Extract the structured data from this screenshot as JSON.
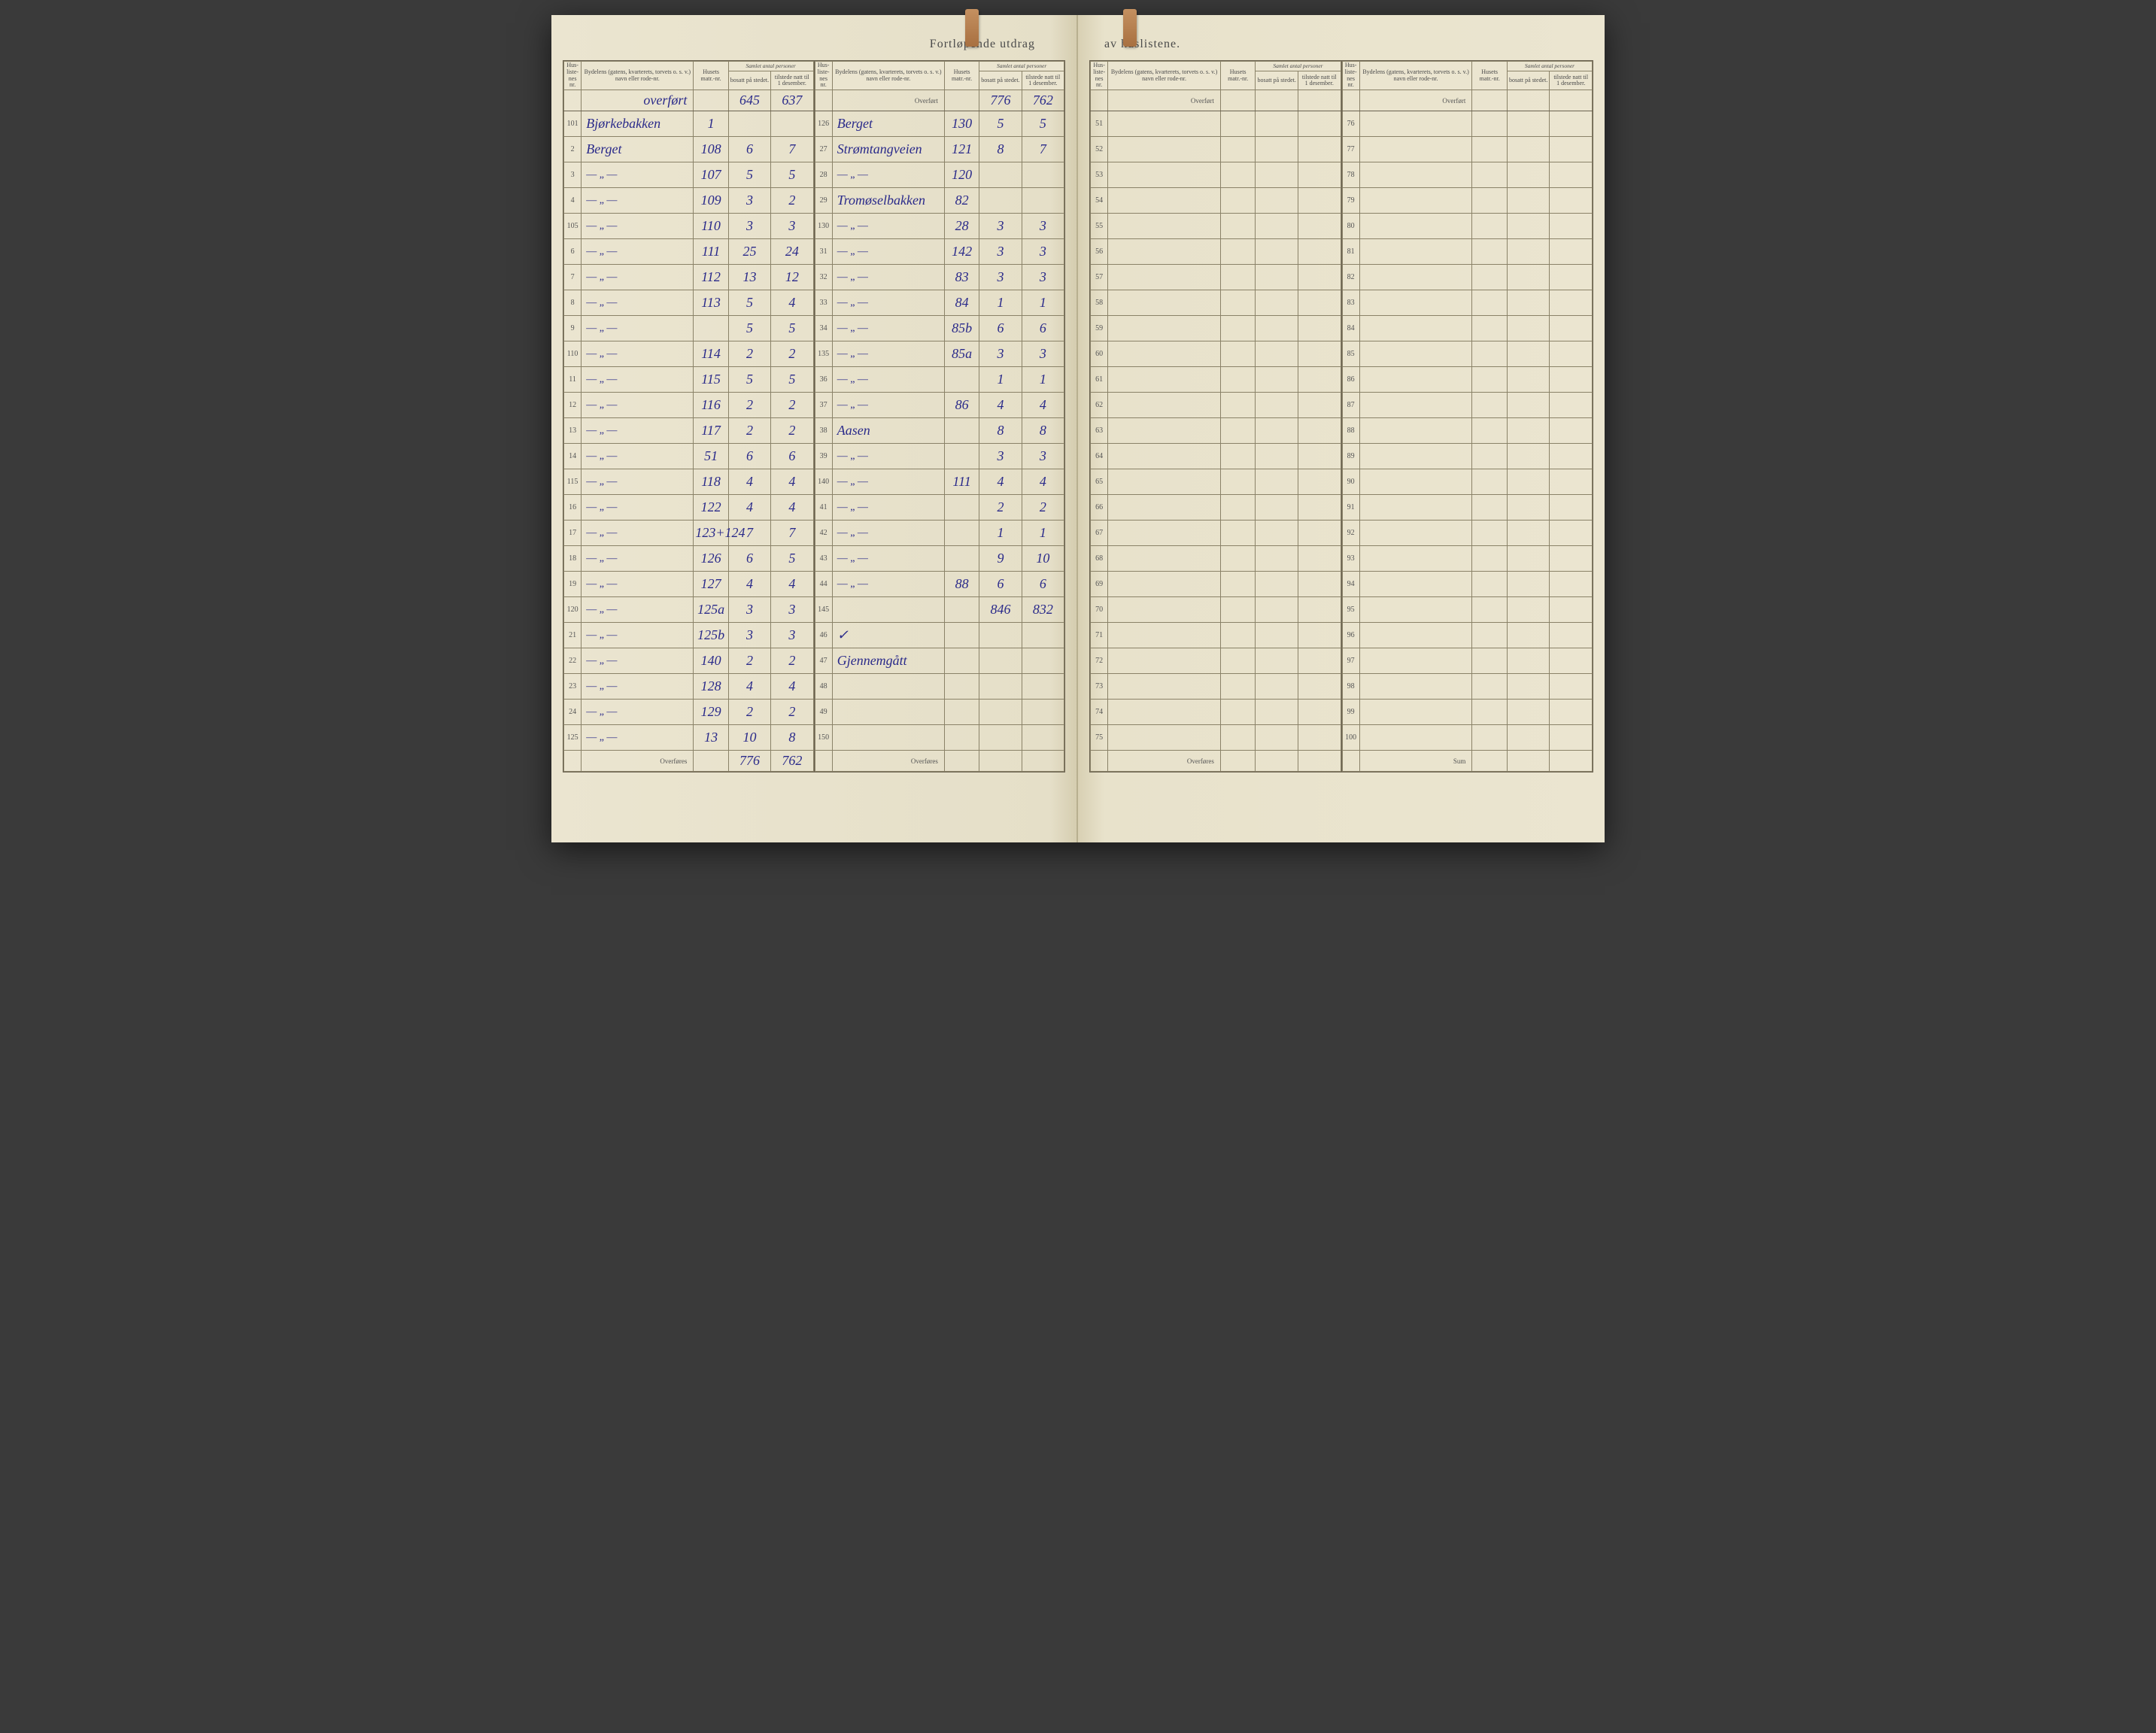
{
  "title_left": "Fortløpende utdrag",
  "title_right": "av huslistene.",
  "headers": {
    "nr": "Hus-liste-nes nr.",
    "bydel": "Bydelens (gatens, kvarterets, torvets o. s. v.) navn eller rode-nr.",
    "matr": "Husets matr.-nr.",
    "samlet": "Samlet antal personer",
    "bosatt": "bosatt på stedet.",
    "tilstede": "tilstede natt til 1 desember."
  },
  "overfort_label": "Overført",
  "overfores_label": "Overføres",
  "sum_label": "Sum",
  "left_col1": {
    "carryover": {
      "bydel": "overført",
      "bosatt": "645",
      "tilstede": "637"
    },
    "rows": [
      {
        "nr": "101",
        "bydel": "Bjørkebakken",
        "matr": "1",
        "bosatt": "",
        "tilstede": ""
      },
      {
        "nr": "2",
        "bydel": "Berget",
        "matr": "108",
        "bosatt": "6",
        "tilstede": "7"
      },
      {
        "nr": "3",
        "bydel": "—\"—",
        "matr": "107",
        "bosatt": "5",
        "tilstede": "5"
      },
      {
        "nr": "4",
        "bydel": "—\"—",
        "matr": "109",
        "bosatt": "3",
        "tilstede": "2"
      },
      {
        "nr": "105",
        "bydel": "—\"—",
        "matr": "110",
        "bosatt": "3",
        "tilstede": "3"
      },
      {
        "nr": "6",
        "bydel": "—\"—",
        "matr": "111",
        "bosatt": "25",
        "tilstede": "24"
      },
      {
        "nr": "7",
        "bydel": "—\"—",
        "matr": "112",
        "bosatt": "13",
        "tilstede": "12"
      },
      {
        "nr": "8",
        "bydel": "—\"—",
        "matr": "113",
        "bosatt": "5",
        "tilstede": "4"
      },
      {
        "nr": "9",
        "bydel": "—\"—",
        "matr": "",
        "bosatt": "5",
        "tilstede": "5"
      },
      {
        "nr": "110",
        "bydel": "—\"—",
        "matr": "114",
        "bosatt": "2",
        "tilstede": "2"
      },
      {
        "nr": "11",
        "bydel": "—\"—",
        "matr": "115",
        "bosatt": "5",
        "tilstede": "5"
      },
      {
        "nr": "12",
        "bydel": "—\"—",
        "matr": "116",
        "bosatt": "2",
        "tilstede": "2"
      },
      {
        "nr": "13",
        "bydel": "—\"—",
        "matr": "117",
        "bosatt": "2",
        "tilstede": "2"
      },
      {
        "nr": "14",
        "bydel": "—\"—",
        "matr": "51",
        "bosatt": "6",
        "tilstede": "6"
      },
      {
        "nr": "115",
        "bydel": "—\"—",
        "matr": "118",
        "bosatt": "4",
        "tilstede": "4"
      },
      {
        "nr": "16",
        "bydel": "—\"—",
        "matr": "122",
        "bosatt": "4",
        "tilstede": "4"
      },
      {
        "nr": "17",
        "bydel": "—\"—",
        "matr": "123+124",
        "bosatt": "7",
        "tilstede": "7"
      },
      {
        "nr": "18",
        "bydel": "—\"—",
        "matr": "126",
        "bosatt": "6",
        "tilstede": "5"
      },
      {
        "nr": "19",
        "bydel": "—\"—",
        "matr": "127",
        "bosatt": "4",
        "tilstede": "4"
      },
      {
        "nr": "120",
        "bydel": "—\"—",
        "matr": "125a",
        "bosatt": "3",
        "tilstede": "3"
      },
      {
        "nr": "21",
        "bydel": "—\"—",
        "matr": "125b",
        "bosatt": "3",
        "tilstede": "3"
      },
      {
        "nr": "22",
        "bydel": "—\"—",
        "matr": "140",
        "bosatt": "2",
        "tilstede": "2"
      },
      {
        "nr": "23",
        "bydel": "—\"—",
        "matr": "128",
        "bosatt": "4",
        "tilstede": "4"
      },
      {
        "nr": "24",
        "bydel": "—\"—",
        "matr": "129",
        "bosatt": "2",
        "tilstede": "2"
      },
      {
        "nr": "125",
        "bydel": "—\"—",
        "matr": "13",
        "bosatt": "10",
        "tilstede": "8"
      }
    ],
    "footer": {
      "bosatt": "776",
      "tilstede": "762"
    }
  },
  "left_col2": {
    "carryover": {
      "bydel": "Overført",
      "bosatt": "776",
      "tilstede": "762"
    },
    "rows": [
      {
        "nr": "126",
        "bydel": "Berget",
        "matr": "130",
        "bosatt": "5",
        "tilstede": "5"
      },
      {
        "nr": "27",
        "bydel": "Strømtangveien",
        "matr": "121",
        "bosatt": "8",
        "tilstede": "7"
      },
      {
        "nr": "28",
        "bydel": "—\"—",
        "matr": "120",
        "bosatt": "",
        "tilstede": ""
      },
      {
        "nr": "29",
        "bydel": "Tromøselbakken",
        "matr": "82",
        "bosatt": "",
        "tilstede": ""
      },
      {
        "nr": "130",
        "bydel": "—\"—",
        "matr": "28",
        "bosatt": "3",
        "tilstede": "3"
      },
      {
        "nr": "31",
        "bydel": "—\"—",
        "matr": "142",
        "bosatt": "3",
        "tilstede": "3"
      },
      {
        "nr": "32",
        "bydel": "—\"—",
        "matr": "83",
        "bosatt": "3",
        "tilstede": "3"
      },
      {
        "nr": "33",
        "bydel": "—\"—",
        "matr": "84",
        "bosatt": "1",
        "tilstede": "1"
      },
      {
        "nr": "34",
        "bydel": "—\"—",
        "matr": "85b",
        "bosatt": "6",
        "tilstede": "6"
      },
      {
        "nr": "135",
        "bydel": "—\"—",
        "matr": "85a",
        "bosatt": "3",
        "tilstede": "3"
      },
      {
        "nr": "36",
        "bydel": "—\"—",
        "matr": "",
        "bosatt": "1",
        "tilstede": "1"
      },
      {
        "nr": "37",
        "bydel": "—\"—",
        "matr": "86",
        "bosatt": "4",
        "tilstede": "4"
      },
      {
        "nr": "38",
        "bydel": "Aasen",
        "matr": "",
        "bosatt": "8",
        "tilstede": "8"
      },
      {
        "nr": "39",
        "bydel": "—\"—",
        "matr": "",
        "bosatt": "3",
        "tilstede": "3"
      },
      {
        "nr": "140",
        "bydel": "—\"—",
        "matr": "111",
        "bosatt": "4",
        "tilstede": "4"
      },
      {
        "nr": "41",
        "bydel": "—\"—",
        "matr": "",
        "bosatt": "2",
        "tilstede": "2"
      },
      {
        "nr": "42",
        "bydel": "—\"—",
        "matr": "",
        "bosatt": "1",
        "tilstede": "1"
      },
      {
        "nr": "43",
        "bydel": "—\"—",
        "matr": "",
        "bosatt": "9",
        "tilstede": "10"
      },
      {
        "nr": "44",
        "bydel": "—\"—",
        "matr": "88",
        "bosatt": "6",
        "tilstede": "6"
      },
      {
        "nr": "145",
        "bydel": "",
        "matr": "",
        "bosatt": "846",
        "tilstede": "832"
      },
      {
        "nr": "46",
        "bydel": "✓",
        "matr": "",
        "bosatt": "",
        "tilstede": ""
      },
      {
        "nr": "47",
        "bydel": "Gjennemgått",
        "matr": "",
        "bosatt": "",
        "tilstede": ""
      },
      {
        "nr": "48",
        "bydel": "",
        "matr": "",
        "bosatt": "",
        "tilstede": ""
      },
      {
        "nr": "49",
        "bydel": "",
        "matr": "",
        "bosatt": "",
        "tilstede": ""
      },
      {
        "nr": "150",
        "bydel": "",
        "matr": "",
        "bosatt": "",
        "tilstede": ""
      }
    ],
    "footer": {
      "bosatt": "",
      "tilstede": ""
    }
  },
  "right_col1": {
    "carryover": {
      "bydel": "Overført",
      "bosatt": "",
      "tilstede": ""
    },
    "rows": [
      {
        "nr": "51"
      },
      {
        "nr": "52"
      },
      {
        "nr": "53"
      },
      {
        "nr": "54"
      },
      {
        "nr": "55"
      },
      {
        "nr": "56"
      },
      {
        "nr": "57"
      },
      {
        "nr": "58"
      },
      {
        "nr": "59"
      },
      {
        "nr": "60"
      },
      {
        "nr": "61"
      },
      {
        "nr": "62"
      },
      {
        "nr": "63"
      },
      {
        "nr": "64"
      },
      {
        "nr": "65"
      },
      {
        "nr": "66"
      },
      {
        "nr": "67"
      },
      {
        "nr": "68"
      },
      {
        "nr": "69"
      },
      {
        "nr": "70"
      },
      {
        "nr": "71"
      },
      {
        "nr": "72"
      },
      {
        "nr": "73"
      },
      {
        "nr": "74"
      },
      {
        "nr": "75"
      }
    ],
    "footer": {
      "bosatt": "",
      "tilstede": ""
    }
  },
  "right_col2": {
    "carryover": {
      "bydel": "Overført",
      "bosatt": "",
      "tilstede": ""
    },
    "rows": [
      {
        "nr": "76"
      },
      {
        "nr": "77"
      },
      {
        "nr": "78"
      },
      {
        "nr": "79"
      },
      {
        "nr": "80"
      },
      {
        "nr": "81"
      },
      {
        "nr": "82"
      },
      {
        "nr": "83"
      },
      {
        "nr": "84"
      },
      {
        "nr": "85"
      },
      {
        "nr": "86"
      },
      {
        "nr": "87"
      },
      {
        "nr": "88"
      },
      {
        "nr": "89"
      },
      {
        "nr": "90"
      },
      {
        "nr": "91"
      },
      {
        "nr": "92"
      },
      {
        "nr": "93"
      },
      {
        "nr": "94"
      },
      {
        "nr": "95"
      },
      {
        "nr": "96"
      },
      {
        "nr": "97"
      },
      {
        "nr": "98"
      },
      {
        "nr": "99"
      },
      {
        "nr": "100"
      }
    ],
    "footer": {
      "bosatt": "",
      "tilstede": ""
    }
  },
  "colors": {
    "page_bg": "#ebe5d0",
    "border": "#6a6250",
    "ink": "#2a2a8a",
    "printed": "#4a4a4a"
  }
}
